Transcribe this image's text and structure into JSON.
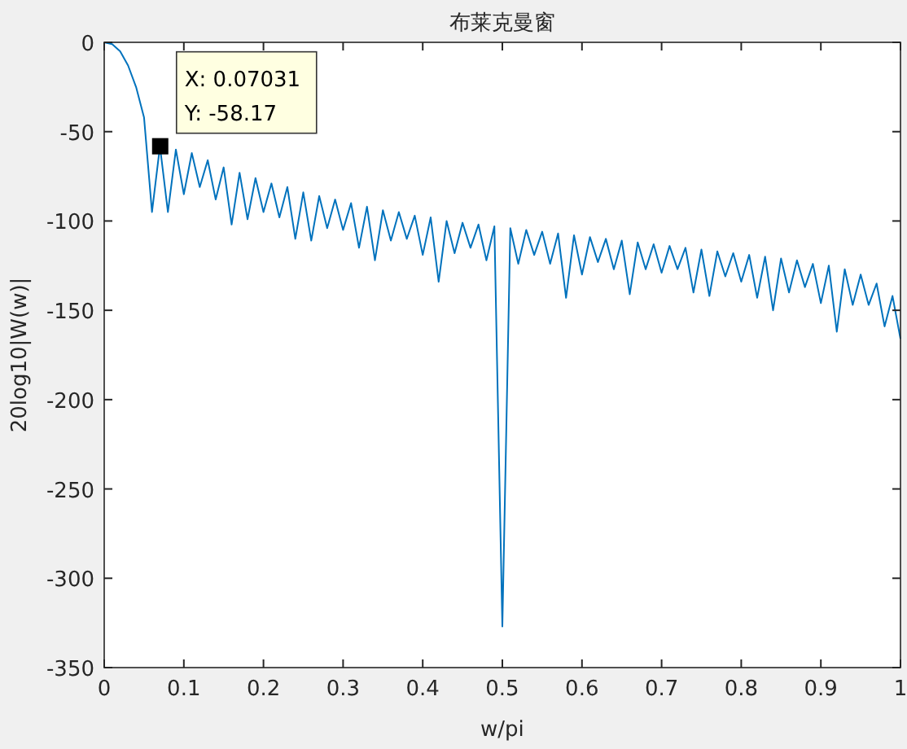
{
  "chart_data": {
    "type": "line",
    "title": "布莱克曼窗",
    "xlabel": "w/pi",
    "ylabel": "20log10|W(w)|",
    "x": [
      0,
      0.01,
      0.02,
      0.03,
      0.04,
      0.05,
      0.06,
      0.07,
      0.08,
      0.09,
      0.1,
      0.11,
      0.12,
      0.13,
      0.14,
      0.15,
      0.16,
      0.17,
      0.18,
      0.19,
      0.2,
      0.21,
      0.22,
      0.23,
      0.24,
      0.25,
      0.26,
      0.27,
      0.28,
      0.29,
      0.3,
      0.31,
      0.32,
      0.33,
      0.34,
      0.35,
      0.36,
      0.37,
      0.38,
      0.39,
      0.4,
      0.41,
      0.42,
      0.43,
      0.44,
      0.45,
      0.46,
      0.47,
      0.48,
      0.49,
      0.5,
      0.51,
      0.52,
      0.53,
      0.54,
      0.55,
      0.56,
      0.57,
      0.58,
      0.59,
      0.6,
      0.61,
      0.62,
      0.63,
      0.64,
      0.65,
      0.66,
      0.67,
      0.68,
      0.69,
      0.7,
      0.71,
      0.72,
      0.73,
      0.74,
      0.75,
      0.76,
      0.77,
      0.78,
      0.79,
      0.8,
      0.81,
      0.82,
      0.83,
      0.84,
      0.85,
      0.86,
      0.87,
      0.88,
      0.89,
      0.9,
      0.91,
      0.92,
      0.93,
      0.94,
      0.95,
      0.96,
      0.97,
      0.98,
      0.99,
      1
    ],
    "series": [
      {
        "color": "#0072bd",
        "values": [
          0,
          -1,
          -5,
          -13,
          -25,
          -42,
          -95,
          -58.17,
          -95,
          -60,
          -85,
          -62,
          -81,
          -66,
          -88,
          -70,
          -102,
          -73,
          -99,
          -76,
          -95,
          -79,
          -98,
          -81,
          -110,
          -84,
          -111,
          -86,
          -104,
          -88,
          -105,
          -90,
          -115,
          -92,
          -122,
          -94,
          -111,
          -95,
          -110,
          -97,
          -119,
          -98,
          -134,
          -100,
          -118,
          -101,
          -115,
          -102,
          -122,
          -103,
          -327,
          -104,
          -124,
          -105,
          -119,
          -106,
          -124,
          -107,
          -143,
          -108,
          -130,
          -109,
          -123,
          -110,
          -127,
          -111,
          -141,
          -112,
          -127,
          -113,
          -129,
          -114,
          -127,
          -115,
          -140,
          -116,
          -142,
          -117,
          -131,
          -118,
          -134,
          -119,
          -143,
          -120,
          -150,
          -121,
          -140,
          -122,
          -137,
          -124,
          -146,
          -125,
          -162,
          -127,
          -147,
          -130,
          -147,
          -135,
          -159,
          -142,
          -166
        ]
      }
    ],
    "xlim": [
      0,
      1
    ],
    "ylim": [
      -350,
      0
    ],
    "xticks": [
      0,
      0.1,
      0.2,
      0.3,
      0.4,
      0.5,
      0.6,
      0.7,
      0.8,
      0.9,
      1
    ],
    "yticks": [
      -350,
      -300,
      -250,
      -200,
      -150,
      -100,
      -50,
      0
    ],
    "grid": false,
    "marker": "none",
    "line_style": "solid",
    "annotations": [
      {
        "text": "X: 0.07031\nY: -58.17",
        "x": 0.07031,
        "y": -58.17
      }
    ]
  }
}
